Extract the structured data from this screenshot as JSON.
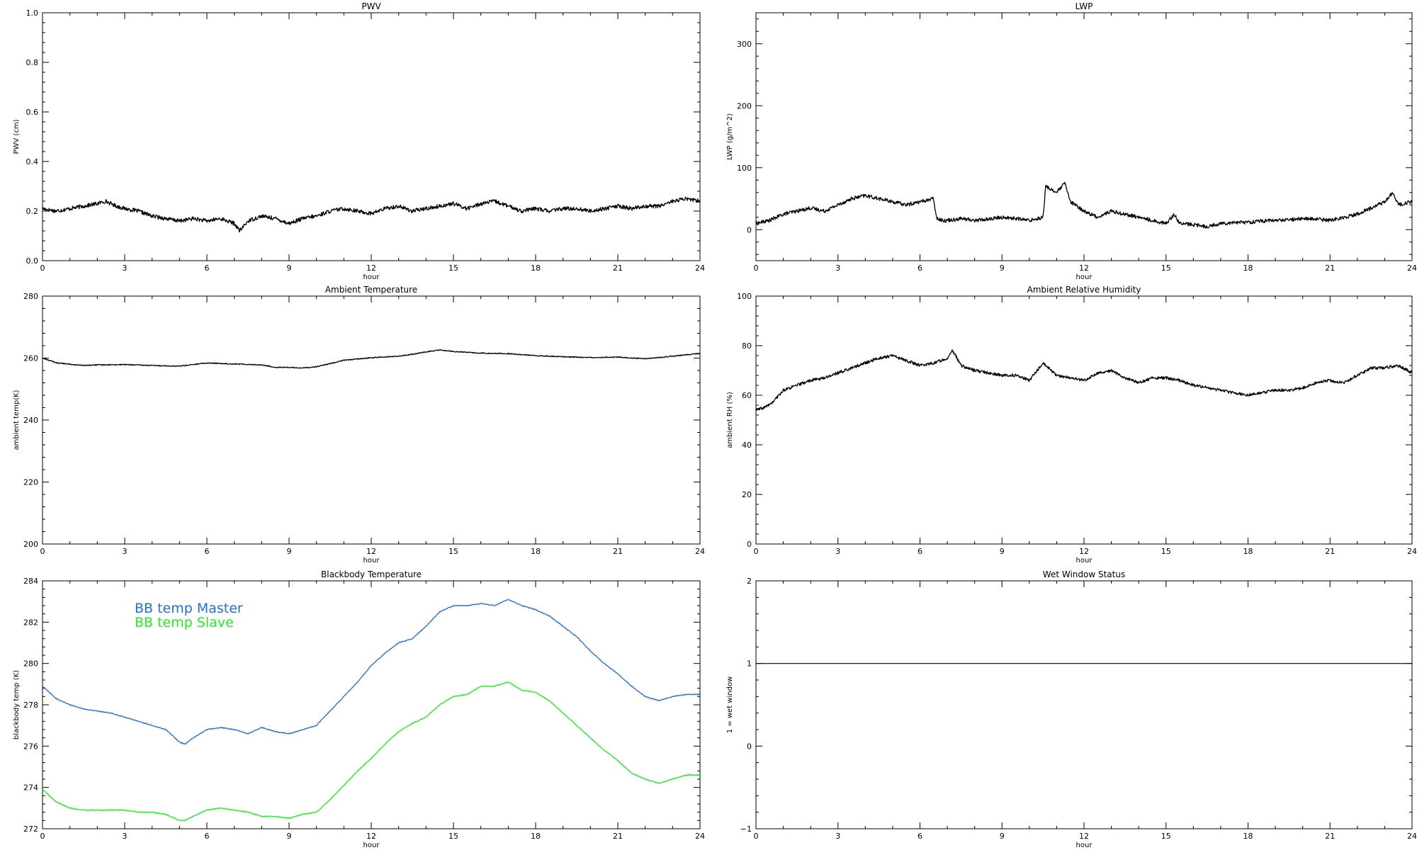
{
  "chart_data": [
    {
      "type": "line",
      "title": "PWV",
      "xlabel": "hour",
      "ylabel": "PWV (cm)",
      "xlim": [
        0,
        24
      ],
      "ylim": [
        0.0,
        1.0
      ],
      "xticks": [
        0,
        3,
        6,
        9,
        12,
        15,
        18,
        21,
        24
      ],
      "yticks": [
        0.0,
        0.2,
        0.4,
        0.6,
        0.8,
        1.0
      ],
      "ytick_labels": [
        "0.0",
        "0.2",
        "0.4",
        "0.6",
        "0.8",
        "1.0"
      ],
      "noise": 0.008,
      "series": [
        {
          "color": "#000000",
          "x": [
            0,
            0.5,
            1,
            1.5,
            2,
            2.3,
            2.7,
            3,
            3.5,
            4,
            4.5,
            5,
            5.5,
            6,
            6.5,
            7,
            7.2,
            7.5,
            8,
            8.5,
            9,
            9.5,
            10,
            10.5,
            11,
            11.5,
            12,
            12.5,
            13,
            13.5,
            14,
            14.5,
            15,
            15.5,
            16,
            16.5,
            17,
            17.5,
            18,
            18.5,
            19,
            19.5,
            20,
            20.5,
            21,
            21.5,
            22,
            22.5,
            23,
            23.5,
            24
          ],
          "y": [
            0.21,
            0.2,
            0.21,
            0.22,
            0.23,
            0.24,
            0.22,
            0.21,
            0.2,
            0.18,
            0.17,
            0.16,
            0.17,
            0.16,
            0.17,
            0.15,
            0.12,
            0.16,
            0.18,
            0.17,
            0.15,
            0.17,
            0.18,
            0.2,
            0.21,
            0.2,
            0.19,
            0.21,
            0.22,
            0.2,
            0.21,
            0.22,
            0.23,
            0.21,
            0.23,
            0.24,
            0.22,
            0.2,
            0.21,
            0.2,
            0.21,
            0.21,
            0.2,
            0.21,
            0.22,
            0.21,
            0.22,
            0.22,
            0.24,
            0.25,
            0.24
          ]
        }
      ]
    },
    {
      "type": "line",
      "title": "LWP",
      "xlabel": "hour",
      "ylabel": "LWP (g/m^2)",
      "xlim": [
        0,
        24
      ],
      "ylim": [
        -50,
        350
      ],
      "xticks": [
        0,
        3,
        6,
        9,
        12,
        15,
        18,
        21,
        24
      ],
      "yticks": [
        0,
        100,
        200,
        300
      ],
      "ytick_labels": [
        "0",
        "100",
        "200",
        "300"
      ],
      "noise": 3,
      "series": [
        {
          "color": "#000000",
          "x": [
            0,
            0.5,
            1,
            1.5,
            2,
            2.5,
            3,
            3.5,
            4,
            4.5,
            5,
            5.5,
            6,
            6.5,
            6.6,
            6.8,
            7,
            7.5,
            8,
            8.5,
            9,
            9.5,
            10,
            10.5,
            10.6,
            11,
            11.3,
            11.5,
            12,
            12.5,
            13,
            13.5,
            14,
            14.5,
            15,
            15.3,
            15.5,
            16,
            16.5,
            17,
            17.5,
            18,
            18.5,
            19,
            19.5,
            20,
            20.5,
            21,
            21.5,
            22,
            22.5,
            23,
            23.3,
            23.5,
            24
          ],
          "y": [
            10,
            15,
            25,
            30,
            35,
            30,
            40,
            50,
            55,
            50,
            45,
            40,
            45,
            50,
            20,
            15,
            15,
            18,
            15,
            17,
            20,
            18,
            15,
            20,
            70,
            60,
            75,
            45,
            30,
            20,
            30,
            25,
            20,
            15,
            10,
            25,
            10,
            8,
            5,
            10,
            12,
            12,
            14,
            15,
            16,
            18,
            17,
            15,
            20,
            25,
            35,
            45,
            60,
            40,
            45
          ]
        }
      ]
    },
    {
      "type": "line",
      "title": "Ambient Temperature",
      "xlabel": "hour",
      "ylabel": "ambient temp(K)",
      "xlim": [
        0,
        24
      ],
      "ylim": [
        200,
        280
      ],
      "xticks": [
        0,
        3,
        6,
        9,
        12,
        15,
        18,
        21,
        24
      ],
      "yticks": [
        200,
        220,
        240,
        260,
        280
      ],
      "ytick_labels": [
        "200",
        "220",
        "240",
        "260",
        "280"
      ],
      "noise": 0.15,
      "series": [
        {
          "color": "#000000",
          "x": [
            0,
            0.5,
            1,
            1.5,
            2,
            3,
            4,
            5,
            6,
            7,
            8,
            8.5,
            9,
            9.5,
            10,
            10.5,
            11,
            12,
            13,
            13.5,
            14,
            14.5,
            15,
            16,
            17,
            18,
            19,
            20,
            21,
            22,
            23,
            24
          ],
          "y": [
            260,
            258.5,
            258,
            257.6,
            257.8,
            257.9,
            257.6,
            257.4,
            258.4,
            258.1,
            257.8,
            257,
            257,
            256.8,
            257.2,
            258.2,
            259.3,
            260.1,
            260.6,
            261.2,
            262,
            262.6,
            262.1,
            261.6,
            261.4,
            260.8,
            260.4,
            260.2,
            260.3,
            259.8,
            260.6,
            261.5
          ]
        }
      ]
    },
    {
      "type": "line",
      "title": "Ambient Relative Humidity",
      "xlabel": "hour",
      "ylabel": "ambient RH (%)",
      "xlim": [
        0,
        24
      ],
      "ylim": [
        0,
        100
      ],
      "xticks": [
        0,
        3,
        6,
        9,
        12,
        15,
        18,
        21,
        24
      ],
      "yticks": [
        0,
        20,
        40,
        60,
        80,
        100
      ],
      "ytick_labels": [
        "0",
        "20",
        "40",
        "60",
        "80",
        "100"
      ],
      "noise": 0.6,
      "series": [
        {
          "color": "#000000",
          "x": [
            0,
            0.3,
            0.6,
            1,
            1.5,
            2,
            2.5,
            3,
            3.5,
            4,
            4.5,
            5,
            5.5,
            6,
            6.5,
            7,
            7.2,
            7.5,
            8,
            8.5,
            9,
            9.5,
            10,
            10.5,
            11,
            11.5,
            12,
            12.5,
            13,
            13.5,
            14,
            14.5,
            15,
            15.5,
            16,
            16.5,
            17,
            17.5,
            18,
            18.5,
            19,
            19.5,
            20,
            20.5,
            21,
            21.5,
            22,
            22.5,
            23,
            23.5,
            24
          ],
          "y": [
            54,
            55,
            57,
            62,
            64,
            66,
            67,
            69,
            71,
            73,
            75,
            76,
            74,
            72,
            73,
            75,
            78,
            72,
            70,
            69,
            68,
            68,
            66,
            73,
            68,
            67,
            66,
            69,
            70,
            67,
            65,
            67,
            67,
            66,
            64,
            63,
            62,
            61,
            60,
            61,
            62,
            62,
            63,
            65,
            66,
            65,
            68,
            71,
            71,
            72,
            69
          ]
        }
      ]
    },
    {
      "type": "line",
      "title": "Blackbody Temperature",
      "xlabel": "hour",
      "ylabel": "blackbody temp (K)",
      "xlim": [
        0,
        24
      ],
      "ylim": [
        272,
        284
      ],
      "xticks": [
        0,
        3,
        6,
        9,
        12,
        15,
        18,
        21,
        24
      ],
      "yticks": [
        272,
        274,
        276,
        278,
        280,
        282,
        284
      ],
      "ytick_labels": [
        "272",
        "274",
        "276",
        "278",
        "280",
        "282",
        "284"
      ],
      "noise": 0.02,
      "legend_position": "top-left",
      "series": [
        {
          "name": "BB temp Master",
          "color": "#1f6fe0",
          "x": [
            0,
            0.5,
            1,
            1.5,
            2,
            2.5,
            3,
            3.5,
            4,
            4.5,
            5,
            5.2,
            5.5,
            6,
            6.5,
            7,
            7.5,
            8,
            8.5,
            9,
            9.5,
            10,
            10.5,
            11,
            11.5,
            12,
            12.5,
            13,
            13.5,
            14,
            14.5,
            15,
            15.5,
            16,
            16.5,
            17,
            17.5,
            18,
            18.5,
            19,
            19.5,
            20,
            20.5,
            21,
            21.5,
            22,
            22.5,
            23,
            23.5,
            24
          ],
          "y": [
            278.9,
            278.3,
            278,
            277.8,
            277.7,
            277.6,
            277.4,
            277.2,
            277,
            276.8,
            276.2,
            276.1,
            276.4,
            276.8,
            276.9,
            276.8,
            276.6,
            276.9,
            276.7,
            276.6,
            276.8,
            277,
            277.7,
            278.4,
            279.1,
            279.9,
            280.5,
            281,
            281.2,
            281.8,
            282.5,
            282.8,
            282.8,
            282.9,
            282.8,
            283.1,
            282.8,
            282.6,
            282.3,
            281.8,
            281.3,
            280.6,
            280,
            279.5,
            278.9,
            278.4,
            278.2,
            278.4,
            278.5,
            278.5
          ]
        },
        {
          "name": "BB temp Slave",
          "color": "#22ee22",
          "x": [
            0,
            0.5,
            1,
            1.5,
            2,
            2.5,
            3,
            3.5,
            4,
            4.5,
            5,
            5.2,
            5.5,
            6,
            6.5,
            7,
            7.5,
            8,
            8.5,
            9,
            9.5,
            10,
            10.5,
            11,
            11.5,
            12,
            12.5,
            13,
            13.5,
            14,
            14.5,
            15,
            15.5,
            16,
            16.5,
            17,
            17.5,
            18,
            18.5,
            19,
            19.5,
            20,
            20.5,
            21,
            21.5,
            22,
            22.5,
            23,
            23.5,
            24
          ],
          "y": [
            273.9,
            273.3,
            273,
            272.9,
            272.9,
            272.9,
            272.9,
            272.8,
            272.8,
            272.7,
            272.4,
            272.4,
            272.6,
            272.9,
            273,
            272.9,
            272.8,
            272.6,
            272.6,
            272.5,
            272.7,
            272.8,
            273.4,
            274.1,
            274.8,
            275.4,
            276.1,
            276.7,
            277.1,
            277.4,
            278,
            278.4,
            278.5,
            278.9,
            278.9,
            279.1,
            278.7,
            278.6,
            278.2,
            277.6,
            277,
            276.4,
            275.8,
            275.3,
            274.7,
            274.4,
            274.2,
            274.4,
            274.6,
            274.6
          ]
        }
      ]
    },
    {
      "type": "line",
      "title": "Wet Window Status",
      "xlabel": "hour",
      "ylabel": "1 = wet window",
      "xlim": [
        0,
        24
      ],
      "ylim": [
        -1,
        2
      ],
      "xticks": [
        0,
        3,
        6,
        9,
        12,
        15,
        18,
        21,
        24
      ],
      "yticks": [
        -1,
        0,
        1,
        2
      ],
      "ytick_labels": [
        "−1",
        "0",
        "1",
        "2"
      ],
      "noise": 0,
      "series": [
        {
          "color": "#000000",
          "x": [
            0,
            24
          ],
          "y": [
            1,
            1
          ]
        }
      ]
    }
  ]
}
